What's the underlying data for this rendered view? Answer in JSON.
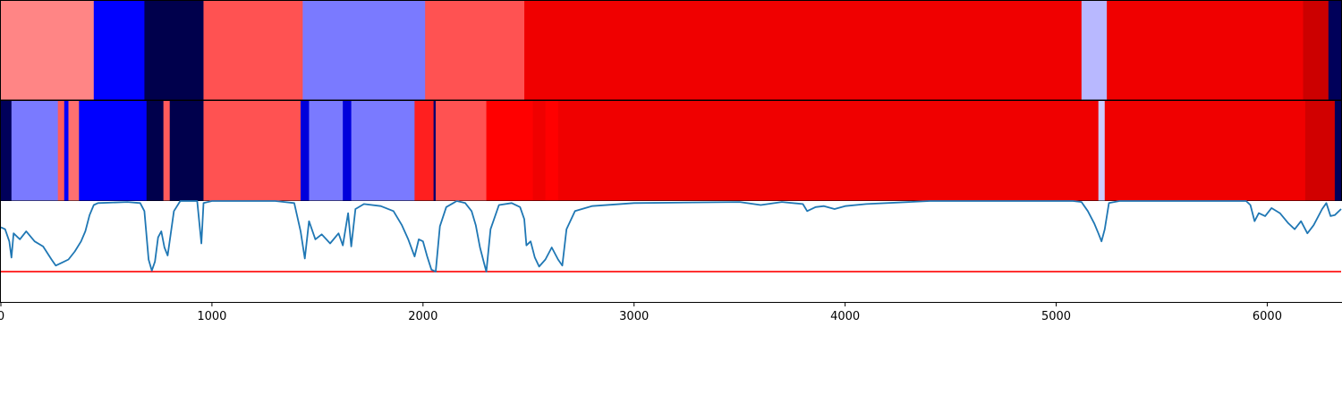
{
  "chart_data": [
    {
      "type": "heatmap",
      "colormap": "seismic",
      "x_range": [
        0,
        6350
      ],
      "segments": [
        {
          "start": 0,
          "end": 440,
          "value": 0.62
        },
        {
          "start": 440,
          "end": 680,
          "value": 0.25
        },
        {
          "start": 680,
          "end": 960,
          "value": 0.0
        },
        {
          "start": 960,
          "end": 1430,
          "value": 0.67
        },
        {
          "start": 1430,
          "end": 2010,
          "value": 0.37
        },
        {
          "start": 2010,
          "end": 2480,
          "value": 0.67
        },
        {
          "start": 2480,
          "end": 5120,
          "value": 0.78
        },
        {
          "start": 5120,
          "end": 5240,
          "value": 0.43
        },
        {
          "start": 5240,
          "end": 6170,
          "value": 0.78
        },
        {
          "start": 6170,
          "end": 6290,
          "value": 0.85
        },
        {
          "start": 6290,
          "end": 6350,
          "value": 0.02
        }
      ]
    },
    {
      "type": "heatmap",
      "colormap": "seismic",
      "x_range": [
        0,
        6350
      ],
      "segments": [
        {
          "start": 0,
          "end": 50,
          "value": 0.02
        },
        {
          "start": 50,
          "end": 270,
          "value": 0.37
        },
        {
          "start": 270,
          "end": 300,
          "value": 0.66
        },
        {
          "start": 300,
          "end": 320,
          "value": 0.25
        },
        {
          "start": 320,
          "end": 370,
          "value": 0.64
        },
        {
          "start": 370,
          "end": 690,
          "value": 0.25
        },
        {
          "start": 690,
          "end": 770,
          "value": 0.0
        },
        {
          "start": 770,
          "end": 800,
          "value": 0.66
        },
        {
          "start": 800,
          "end": 960,
          "value": 0.0
        },
        {
          "start": 960,
          "end": 1420,
          "value": 0.67
        },
        {
          "start": 1420,
          "end": 1460,
          "value": 0.2
        },
        {
          "start": 1460,
          "end": 1620,
          "value": 0.37
        },
        {
          "start": 1620,
          "end": 1660,
          "value": 0.2
        },
        {
          "start": 1660,
          "end": 1960,
          "value": 0.37
        },
        {
          "start": 1960,
          "end": 2050,
          "value": 0.72
        },
        {
          "start": 2050,
          "end": 2060,
          "value": 0.05
        },
        {
          "start": 2060,
          "end": 2300,
          "value": 0.67
        },
        {
          "start": 2300,
          "end": 2520,
          "value": 0.75
        },
        {
          "start": 2520,
          "end": 2580,
          "value": 0.78
        },
        {
          "start": 2580,
          "end": 2640,
          "value": 0.75
        },
        {
          "start": 2640,
          "end": 2760,
          "value": 0.78
        },
        {
          "start": 2760,
          "end": 5200,
          "value": 0.78
        },
        {
          "start": 5200,
          "end": 5230,
          "value": 0.45
        },
        {
          "start": 5230,
          "end": 6180,
          "value": 0.78
        },
        {
          "start": 6180,
          "end": 6320,
          "value": 0.84
        },
        {
          "start": 6320,
          "end": 6350,
          "value": 0.02
        }
      ]
    },
    {
      "type": "line",
      "x_range": [
        0,
        6350
      ],
      "ylim": [
        0,
        1
      ],
      "line_color": "#1f77b4",
      "threshold": {
        "y": 0.3,
        "color": "#ff0000"
      },
      "x_ticks": [
        0,
        1000,
        2000,
        3000,
        4000,
        5000,
        6000
      ],
      "x_tick_labels": [
        "0",
        "1000",
        "2000",
        "3000",
        "4000",
        "5000",
        "6000"
      ],
      "series": [
        {
          "points": [
            [
              0,
              0.74
            ],
            [
              20,
              0.72
            ],
            [
              40,
              0.6
            ],
            [
              50,
              0.44
            ],
            [
              60,
              0.68
            ],
            [
              90,
              0.62
            ],
            [
              120,
              0.7
            ],
            [
              160,
              0.6
            ],
            [
              200,
              0.55
            ],
            [
              240,
              0.42
            ],
            [
              260,
              0.36
            ],
            [
              290,
              0.39
            ],
            [
              320,
              0.42
            ],
            [
              350,
              0.5
            ],
            [
              380,
              0.6
            ],
            [
              400,
              0.7
            ],
            [
              420,
              0.86
            ],
            [
              440,
              0.96
            ],
            [
              460,
              0.98
            ],
            [
              600,
              0.99
            ],
            [
              660,
              0.98
            ],
            [
              680,
              0.9
            ],
            [
              700,
              0.42
            ],
            [
              715,
              0.31
            ],
            [
              730,
              0.4
            ],
            [
              745,
              0.64
            ],
            [
              760,
              0.7
            ],
            [
              775,
              0.54
            ],
            [
              790,
              0.46
            ],
            [
              820,
              0.9
            ],
            [
              850,
              1.0
            ],
            [
              900,
              1.0
            ],
            [
              930,
              1.0
            ],
            [
              950,
              0.58
            ],
            [
              960,
              0.98
            ],
            [
              1000,
              1.0
            ],
            [
              1300,
              1.0
            ],
            [
              1390,
              0.98
            ],
            [
              1420,
              0.7
            ],
            [
              1440,
              0.43
            ],
            [
              1460,
              0.8
            ],
            [
              1490,
              0.62
            ],
            [
              1520,
              0.67
            ],
            [
              1560,
              0.58
            ],
            [
              1600,
              0.68
            ],
            [
              1620,
              0.56
            ],
            [
              1645,
              0.88
            ],
            [
              1660,
              0.55
            ],
            [
              1680,
              0.92
            ],
            [
              1720,
              0.97
            ],
            [
              1800,
              0.95
            ],
            [
              1860,
              0.9
            ],
            [
              1900,
              0.76
            ],
            [
              1930,
              0.62
            ],
            [
              1960,
              0.45
            ],
            [
              1980,
              0.62
            ],
            [
              2000,
              0.6
            ],
            [
              2020,
              0.45
            ],
            [
              2040,
              0.32
            ],
            [
              2060,
              0.3
            ],
            [
              2080,
              0.75
            ],
            [
              2110,
              0.94
            ],
            [
              2160,
              1.0
            ],
            [
              2200,
              0.98
            ],
            [
              2230,
              0.9
            ],
            [
              2250,
              0.76
            ],
            [
              2270,
              0.54
            ],
            [
              2290,
              0.38
            ],
            [
              2300,
              0.3
            ],
            [
              2320,
              0.72
            ],
            [
              2360,
              0.96
            ],
            [
              2420,
              0.98
            ],
            [
              2460,
              0.94
            ],
            [
              2480,
              0.82
            ],
            [
              2490,
              0.56
            ],
            [
              2510,
              0.6
            ],
            [
              2530,
              0.44
            ],
            [
              2550,
              0.35
            ],
            [
              2580,
              0.42
            ],
            [
              2610,
              0.54
            ],
            [
              2640,
              0.42
            ],
            [
              2660,
              0.36
            ],
            [
              2680,
              0.72
            ],
            [
              2720,
              0.9
            ],
            [
              2800,
              0.95
            ],
            [
              3000,
              0.98
            ],
            [
              3500,
              0.99
            ],
            [
              3600,
              0.96
            ],
            [
              3700,
              0.99
            ],
            [
              3800,
              0.97
            ],
            [
              3820,
              0.9
            ],
            [
              3860,
              0.94
            ],
            [
              3900,
              0.95
            ],
            [
              3950,
              0.92
            ],
            [
              4000,
              0.95
            ],
            [
              4100,
              0.97
            ],
            [
              4400,
              1.0
            ],
            [
              5080,
              1.0
            ],
            [
              5120,
              0.99
            ],
            [
              5150,
              0.9
            ],
            [
              5180,
              0.78
            ],
            [
              5200,
              0.68
            ],
            [
              5215,
              0.6
            ],
            [
              5230,
              0.72
            ],
            [
              5250,
              0.98
            ],
            [
              5300,
              1.0
            ],
            [
              5900,
              1.0
            ],
            [
              5920,
              0.96
            ],
            [
              5940,
              0.8
            ],
            [
              5960,
              0.88
            ],
            [
              5990,
              0.85
            ],
            [
              6020,
              0.93
            ],
            [
              6060,
              0.88
            ],
            [
              6100,
              0.78
            ],
            [
              6130,
              0.72
            ],
            [
              6160,
              0.8
            ],
            [
              6190,
              0.68
            ],
            [
              6220,
              0.76
            ],
            [
              6260,
              0.92
            ],
            [
              6280,
              0.98
            ],
            [
              6300,
              0.85
            ],
            [
              6320,
              0.86
            ],
            [
              6350,
              0.92
            ]
          ]
        }
      ]
    }
  ]
}
